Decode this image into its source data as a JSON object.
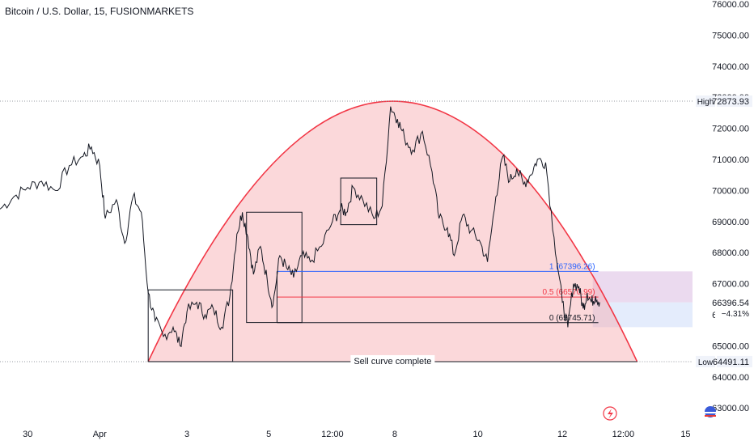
{
  "chart_data": {
    "type": "line",
    "title": "Bitcoin / U.S. Dollar, 15, FUSIONMARKETS",
    "ylim": [
      62500,
      76000
    ],
    "y_ticks": [
      63000,
      64000,
      65000,
      66000,
      67000,
      68000,
      69000,
      70000,
      71000,
      72000,
      73000,
      74000,
      75000,
      76000
    ],
    "y_tick_labels": [
      "63000.00",
      "64000.00",
      "65000.00",
      "66000.00",
      "67000.00",
      "68000.00",
      "69000.00",
      "70000.00",
      "71000.00",
      "72000.00",
      "73000.00",
      "74000.00",
      "75000.00",
      "76000.00"
    ],
    "xlim": [
      0,
      50
    ],
    "x_ticks": [
      {
        "x": 2.0,
        "label": "30"
      },
      {
        "x": 7.2,
        "label": "Apr"
      },
      {
        "x": 13.5,
        "label": "3"
      },
      {
        "x": 19.4,
        "label": "5"
      },
      {
        "x": 24.0,
        "label": "12:00"
      },
      {
        "x": 28.5,
        "label": "8"
      },
      {
        "x": 34.5,
        "label": "10"
      },
      {
        "x": 40.6,
        "label": "12"
      },
      {
        "x": 45.0,
        "label": "12:00"
      },
      {
        "x": 49.5,
        "label": "15"
      }
    ],
    "series": [
      {
        "color": "#131722",
        "x": [
          0,
          1.0,
          2.0,
          3.0,
          4.0,
          5.0,
          6.0,
          6.6,
          7.2,
          7.6,
          8.4,
          9.0,
          9.6,
          10.2,
          10.7,
          11.2,
          11.8,
          12.5,
          13.0,
          13.5,
          14.2,
          14.8,
          15.4,
          16.0,
          16.6,
          17.1,
          17.5,
          17.9,
          18.3,
          18.8,
          19.3,
          19.7,
          20.2,
          20.7,
          21.2,
          21.8,
          22.4,
          23.2,
          24.0,
          24.6,
          25.0,
          25.5,
          26.2,
          27.0,
          27.6,
          28.2,
          28.7,
          29.2,
          29.8,
          30.5,
          31.2,
          31.7,
          32.3,
          32.8,
          33.4,
          34.0,
          34.6,
          35.2,
          35.8,
          36.3,
          36.8,
          37.3,
          37.8,
          38.3,
          38.8,
          39.4,
          40.0,
          40.6,
          41.0,
          41.4,
          41.8,
          42.1,
          42.4,
          42.7,
          43.0,
          43.3
        ],
        "y": [
          69400,
          69800,
          70100,
          70300,
          70000,
          70800,
          71100,
          71400,
          70800,
          69100,
          69700,
          68300,
          69800,
          69300,
          66700,
          65800,
          65300,
          65600,
          65000,
          66100,
          66400,
          66000,
          66200,
          65600,
          66600,
          68600,
          69300,
          68500,
          67300,
          68200,
          67100,
          66300,
          67900,
          67500,
          67200,
          67900,
          67700,
          68200,
          69000,
          69400,
          69300,
          70100,
          69700,
          69100,
          69500,
          72700,
          72300,
          71700,
          71300,
          71900,
          70600,
          69100,
          68800,
          67900,
          69200,
          68700,
          68400,
          67700,
          69800,
          71100,
          70300,
          70700,
          70200,
          70500,
          71000,
          70900,
          68500,
          66400,
          65600,
          67000,
          66900,
          66200,
          66700,
          66400,
          66600,
          66400
        ]
      }
    ],
    "price_label": "66396.54",
    "change_label": "−4.31%",
    "high": {
      "value": 72873.93,
      "label": "High",
      "value_label": "72873.93"
    },
    "low": {
      "value": 64491.11,
      "label": "Low",
      "value_label": "64491.11"
    },
    "annotations": {
      "curve": {
        "x0": 10.7,
        "x1": 46.0,
        "y_base": 64491.11,
        "y_peak": 72873.93,
        "label": "Sell curve complete",
        "fill": "#f7a9ae",
        "stroke": "#f23645"
      },
      "boxes": [
        {
          "x0": 10.7,
          "x1": 16.8,
          "y0": 64491.11,
          "y1": 66800
        },
        {
          "x0": 17.8,
          "x1": 21.8,
          "y0": 65750,
          "y1": 69300
        },
        {
          "x0": 24.6,
          "x1": 27.2,
          "y0": 68900,
          "y1": 70400
        }
      ],
      "fib": {
        "x0": 20.0,
        "x1": 43.2,
        "levels": [
          {
            "label": "1 (67396.26)",
            "value": 67396.26,
            "color": "#2962ff"
          },
          {
            "label": "0.5 (66570.99)",
            "value": 66570.99,
            "color": "#f23645"
          },
          {
            "label": "0 (65745.71)",
            "value": 65745.71,
            "color": "#131722"
          }
        ]
      },
      "zones": [
        {
          "x0": 42.8,
          "x1": 50,
          "y0": 66396.54,
          "y1": 67396.26,
          "color": "#e7d3ec"
        },
        {
          "x0": 42.8,
          "x1": 50,
          "y0": 65600,
          "y1": 66396.54,
          "color": "#dfe9fb"
        }
      ]
    },
    "colors": {
      "price_tag": "#131722",
      "change_text": "#131722",
      "grid": "none"
    }
  }
}
